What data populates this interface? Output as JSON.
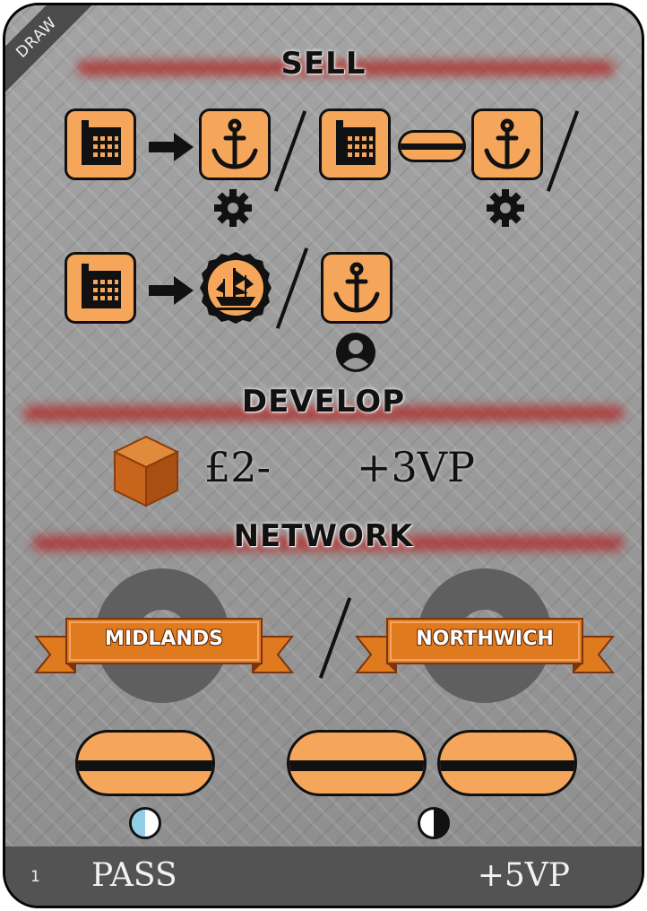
{
  "corner_label": "DRAW",
  "sections": {
    "sell": {
      "heading": "SELL"
    },
    "develop": {
      "heading": "DEVELOP",
      "cost": "£2-",
      "reward": "+3VP"
    },
    "network": {
      "heading": "NETWORK",
      "locations": [
        "MIDLANDS",
        "NORTHWICH"
      ]
    }
  },
  "icons": {
    "industry": "factory-icon",
    "port": "anchor-icon",
    "merchant": "ship-icon",
    "developed": "gear-icon",
    "player": "person-icon",
    "resource": "cube-icon"
  },
  "colors": {
    "tile_orange": "#f5a65b",
    "banner_orange": "#e07a1f",
    "heading_red": "#b02a2a",
    "canal_era_blue": "#8fd0e6",
    "cube_brown": "#c8641c"
  },
  "footer": {
    "card_number": "1",
    "pass_label": "PASS",
    "pass_reward": "+5VP"
  }
}
